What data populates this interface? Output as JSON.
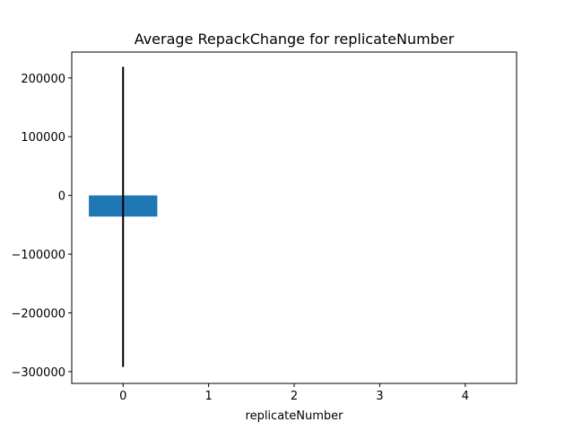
{
  "chart_data": {
    "type": "bar",
    "title": "Average RepackChange for replicateNumber",
    "xlabel": "replicateNumber",
    "ylabel": "",
    "categories": [
      0
    ],
    "values": [
      -36000
    ],
    "error_bars": [
      {
        "x": 0,
        "low": -292000,
        "high": 219000
      }
    ],
    "bar_color": "#1f77b4",
    "errorbar_color": "#000000",
    "xlim": [
      -0.6,
      4.6
    ],
    "ylim": [
      -320000,
      244000
    ],
    "x_ticks": [
      0,
      1,
      2,
      3,
      4
    ],
    "x_tick_labels": [
      "0",
      "1",
      "2",
      "3",
      "4"
    ],
    "y_ticks": [
      200000,
      100000,
      0,
      -100000,
      -200000,
      -300000
    ],
    "y_tick_labels": [
      "200000",
      "100000",
      "0",
      "−100000",
      "−200000",
      "−300000"
    ],
    "grid": false,
    "legend": "none"
  }
}
